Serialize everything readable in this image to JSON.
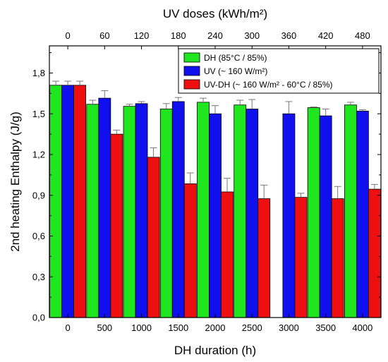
{
  "chart_data": {
    "type": "bar",
    "xlabel": "DH duration (h)",
    "ylabel": "2nd heating Enthalpy (J/g)",
    "x2label": "UV doses (kWh/m²)",
    "categories": [
      "0",
      "500",
      "1000",
      "1500",
      "2000",
      "2500",
      "3000",
      "3500",
      "4000"
    ],
    "top_categories": [
      "0",
      "60",
      "120",
      "180",
      "240",
      "300",
      "360",
      "420",
      "480"
    ],
    "ylim": [
      0,
      2.0
    ],
    "yticks": [
      "0,0",
      "0,3",
      "0,6",
      "0,9",
      "1,2",
      "1,5",
      "1,8"
    ],
    "ytick_values": [
      0,
      0.3,
      0.6,
      0.9,
      1.2,
      1.5,
      1.8
    ],
    "grid": false,
    "legend_position": "top-right",
    "series": [
      {
        "name": "DH (85°C / 85%)",
        "color": "#1fe61f",
        "values": [
          1.71,
          1.57,
          1.555,
          1.535,
          1.585,
          1.565,
          null,
          1.545,
          1.565
        ],
        "errors": [
          0.03,
          0.03,
          0.015,
          0.04,
          0.03,
          0.035,
          null,
          0.005,
          0.02
        ]
      },
      {
        "name": "UV (~ 160 W/m²)",
        "color": "#1010ee",
        "values": [
          1.71,
          1.615,
          1.575,
          1.59,
          1.5,
          1.535,
          1.5,
          1.485,
          1.52
        ],
        "errors": [
          0.03,
          0.055,
          0.015,
          0.03,
          0.06,
          0.07,
          0.09,
          0.05,
          0.01
        ]
      },
      {
        "name": "UV-DH (~ 160 W/m² - 60°C / 85%)",
        "color": "#ee1010",
        "values": [
          1.71,
          1.35,
          1.18,
          0.985,
          0.925,
          0.875,
          0.885,
          0.875,
          0.945
        ],
        "errors": [
          0.03,
          0.03,
          0.07,
          0.08,
          0.1,
          0.1,
          0.03,
          0.09,
          0.035
        ]
      }
    ]
  }
}
